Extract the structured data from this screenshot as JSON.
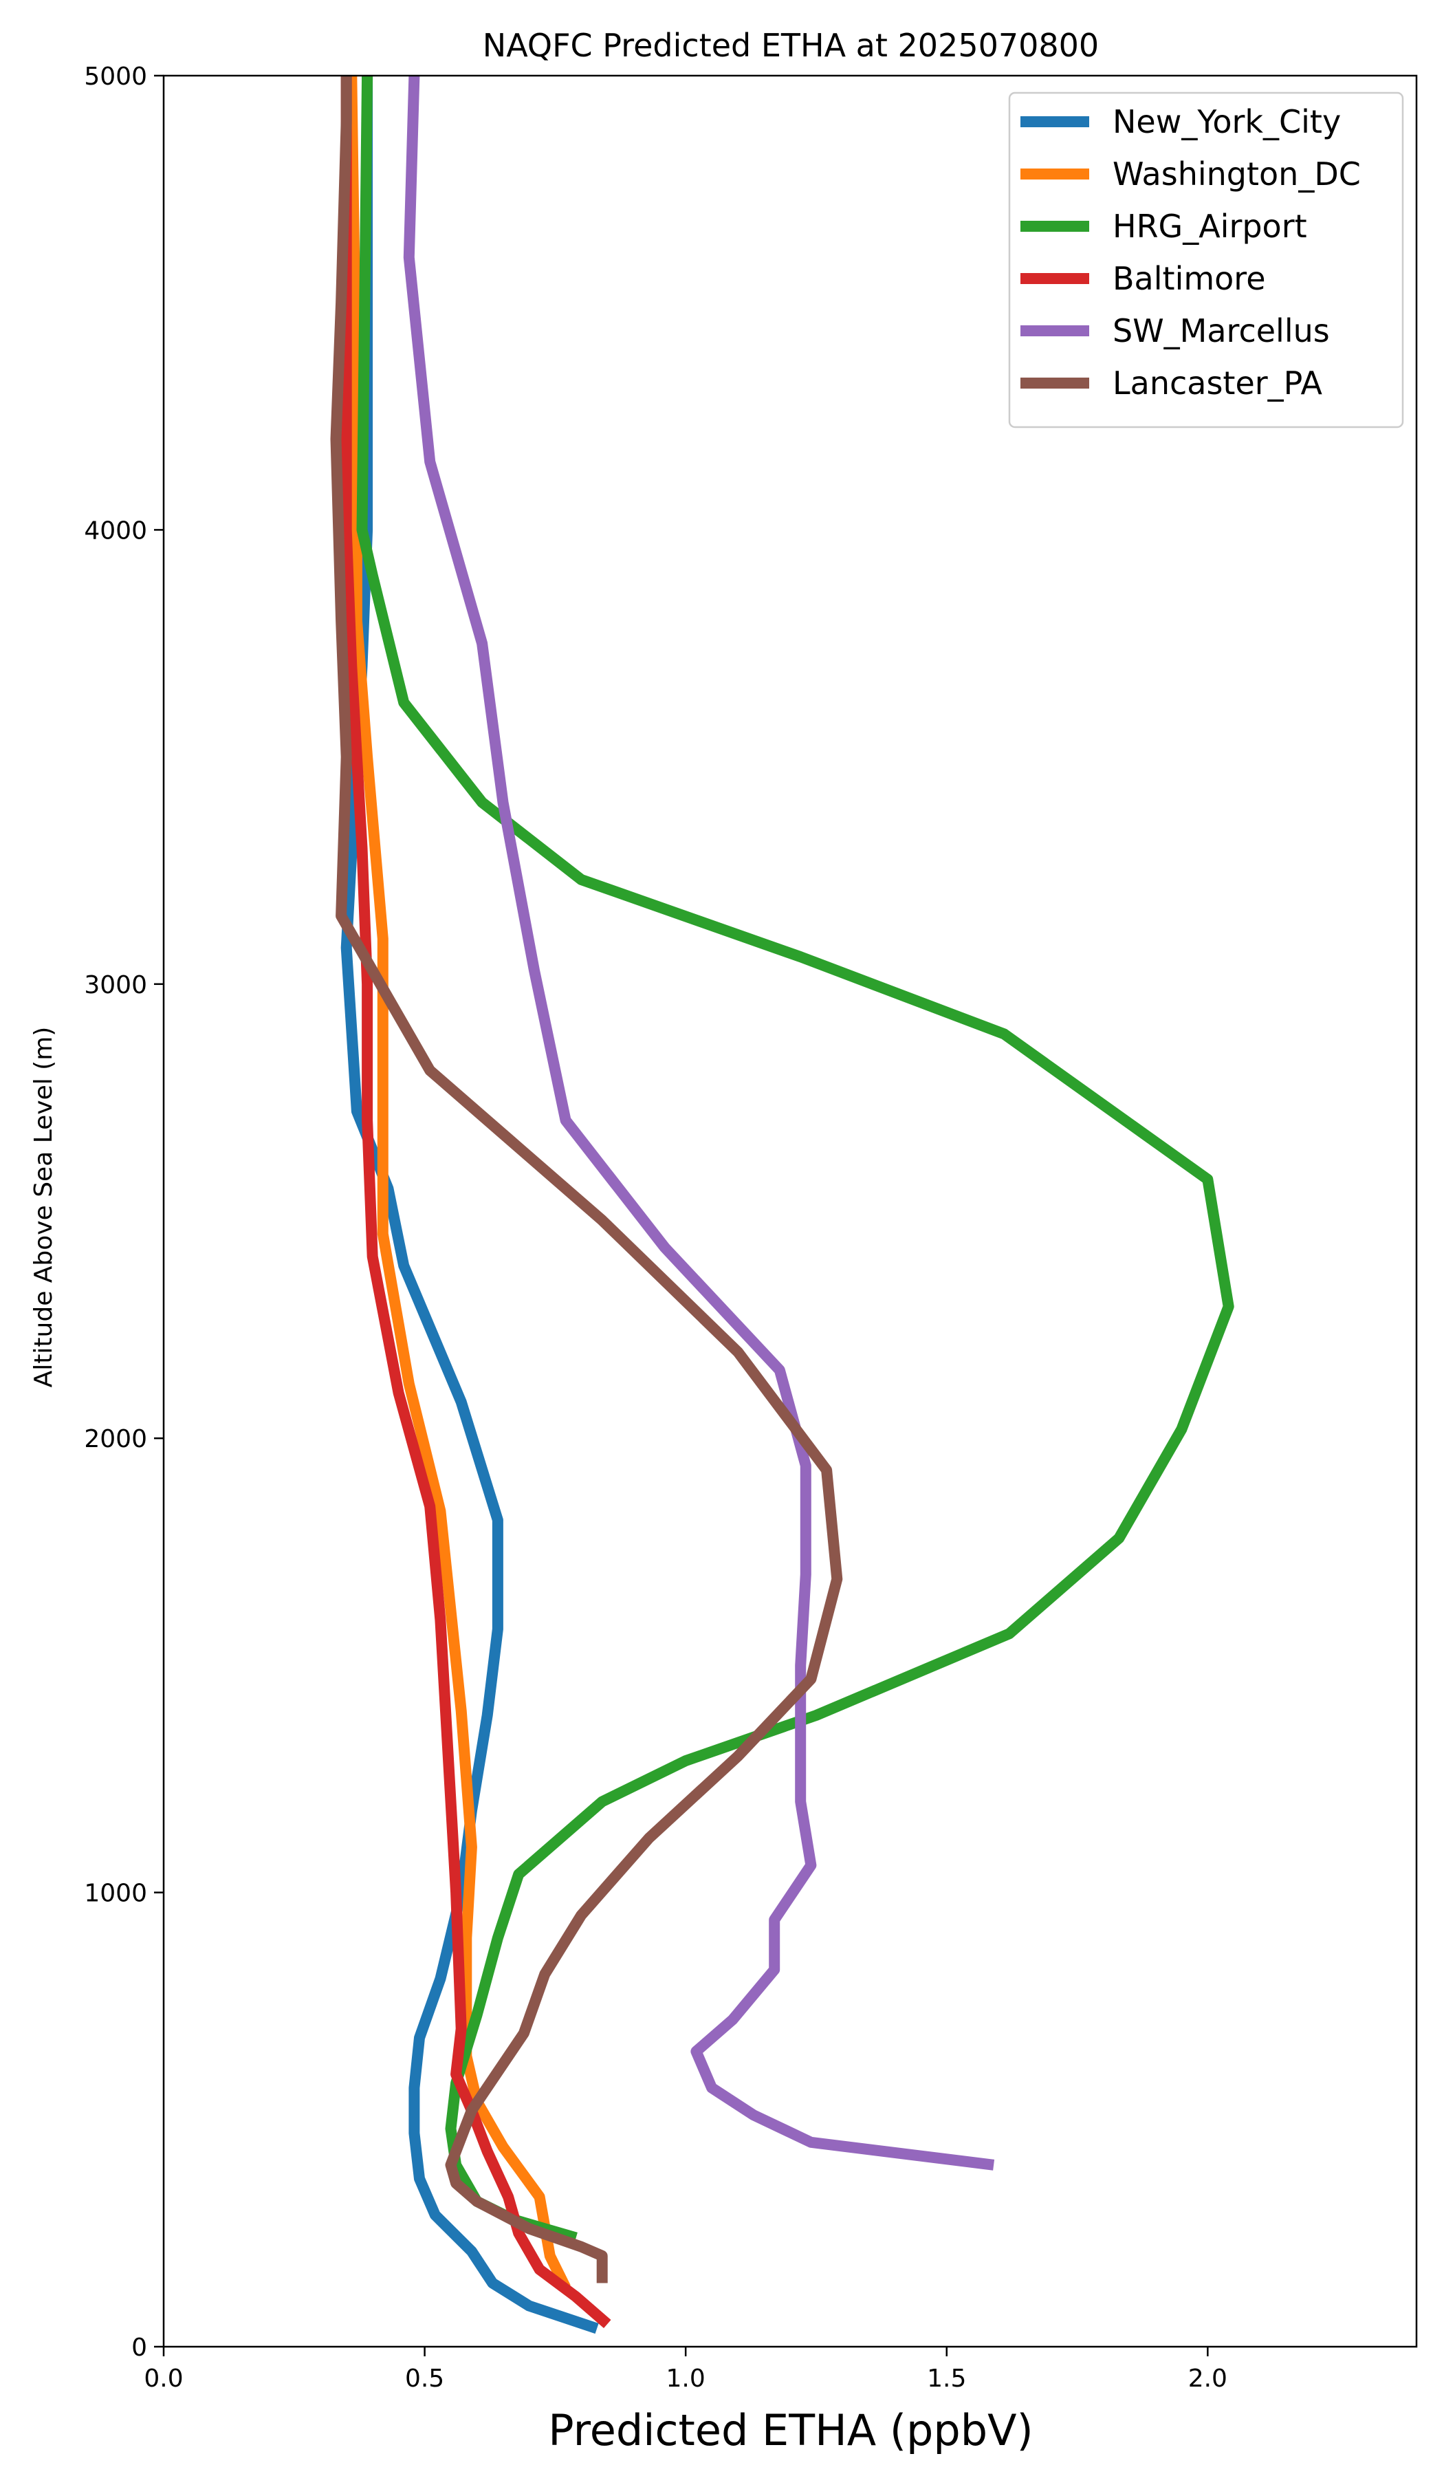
{
  "chart_data": {
    "type": "line",
    "title": "NAQFC Predicted ETHA at 2025070800",
    "xlabel": "Predicted ETHA (ppbV)",
    "ylabel": "Altitude Above Sea Level (m)",
    "xlim": [
      0,
      2.4
    ],
    "ylim": [
      0,
      5000
    ],
    "xticks": [
      "0.0",
      "0.5",
      "1.0",
      "1.5",
      "2.0"
    ],
    "yticks": [
      "0",
      "1000",
      "2000",
      "3000",
      "4000",
      "5000"
    ],
    "grid": false,
    "legend_position": "top-right",
    "series": [
      {
        "name": "New_York_City",
        "color": "#1f77b4",
        "points": [
          [
            0.83,
            40
          ],
          [
            0.7,
            90
          ],
          [
            0.63,
            140
          ],
          [
            0.59,
            210
          ],
          [
            0.52,
            290
          ],
          [
            0.49,
            370
          ],
          [
            0.48,
            470
          ],
          [
            0.48,
            570
          ],
          [
            0.49,
            680
          ],
          [
            0.53,
            810
          ],
          [
            0.57,
            1000
          ],
          [
            0.59,
            1180
          ],
          [
            0.62,
            1390
          ],
          [
            0.64,
            1580
          ],
          [
            0.64,
            1820
          ],
          [
            0.57,
            2080
          ],
          [
            0.46,
            2380
          ],
          [
            0.43,
            2550
          ],
          [
            0.37,
            2720
          ],
          [
            0.35,
            3080
          ],
          [
            0.38,
            3700
          ],
          [
            0.39,
            4000
          ],
          [
            0.39,
            5000
          ]
        ]
      },
      {
        "name": "Washington_DC",
        "color": "#ff7f0e",
        "points": [
          [
            0.77,
            130
          ],
          [
            0.74,
            200
          ],
          [
            0.72,
            330
          ],
          [
            0.65,
            440
          ],
          [
            0.6,
            540
          ],
          [
            0.58,
            640
          ],
          [
            0.58,
            900
          ],
          [
            0.59,
            1100
          ],
          [
            0.57,
            1400
          ],
          [
            0.53,
            1840
          ],
          [
            0.47,
            2120
          ],
          [
            0.42,
            2450
          ],
          [
            0.42,
            2720
          ],
          [
            0.42,
            3100
          ],
          [
            0.39,
            3500
          ],
          [
            0.37,
            3800
          ],
          [
            0.37,
            4200
          ],
          [
            0.36,
            5000
          ]
        ]
      },
      {
        "name": "HRG_Airport",
        "color": "#2ca02c",
        "points": [
          [
            0.79,
            240
          ],
          [
            0.67,
            280
          ],
          [
            0.6,
            320
          ],
          [
            0.56,
            400
          ],
          [
            0.55,
            480
          ],
          [
            0.56,
            580
          ],
          [
            0.6,
            730
          ],
          [
            0.64,
            900
          ],
          [
            0.68,
            1040
          ],
          [
            0.84,
            1200
          ],
          [
            1.0,
            1290
          ],
          [
            1.25,
            1390
          ],
          [
            1.62,
            1570
          ],
          [
            1.83,
            1780
          ],
          [
            1.95,
            2020
          ],
          [
            2.04,
            2290
          ],
          [
            2.0,
            2570
          ],
          [
            1.61,
            2890
          ],
          [
            1.22,
            3060
          ],
          [
            0.8,
            3230
          ],
          [
            0.61,
            3400
          ],
          [
            0.46,
            3620
          ],
          [
            0.4,
            3900
          ],
          [
            0.38,
            4000
          ],
          [
            0.39,
            5000
          ]
        ]
      },
      {
        "name": "Baltimore",
        "color": "#d62728",
        "points": [
          [
            0.85,
            50
          ],
          [
            0.79,
            110
          ],
          [
            0.72,
            170
          ],
          [
            0.68,
            250
          ],
          [
            0.66,
            330
          ],
          [
            0.62,
            430
          ],
          [
            0.59,
            520
          ],
          [
            0.56,
            600
          ],
          [
            0.57,
            700
          ],
          [
            0.56,
            1000
          ],
          [
            0.54,
            1400
          ],
          [
            0.53,
            1600
          ],
          [
            0.51,
            1850
          ],
          [
            0.45,
            2100
          ],
          [
            0.4,
            2400
          ],
          [
            0.39,
            2700
          ],
          [
            0.39,
            3000
          ],
          [
            0.38,
            3300
          ],
          [
            0.36,
            3700
          ],
          [
            0.35,
            4000
          ],
          [
            0.35,
            4500
          ],
          [
            0.35,
            5000
          ]
        ]
      },
      {
        "name": "SW_Marcellus",
        "color": "#9467bd",
        "points": [
          [
            1.59,
            400
          ],
          [
            1.24,
            450
          ],
          [
            1.13,
            510
          ],
          [
            1.05,
            570
          ],
          [
            1.02,
            650
          ],
          [
            1.09,
            720
          ],
          [
            1.17,
            830
          ],
          [
            1.17,
            940
          ],
          [
            1.24,
            1060
          ],
          [
            1.22,
            1200
          ],
          [
            1.22,
            1500
          ],
          [
            1.23,
            1700
          ],
          [
            1.23,
            1940
          ],
          [
            1.18,
            2150
          ],
          [
            0.96,
            2420
          ],
          [
            0.77,
            2700
          ],
          [
            0.71,
            3030
          ],
          [
            0.65,
            3400
          ],
          [
            0.61,
            3750
          ],
          [
            0.51,
            4150
          ],
          [
            0.47,
            4600
          ],
          [
            0.48,
            5000
          ]
        ]
      },
      {
        "name": "Lancaster_PA",
        "color": "#8c564b",
        "points": [
          [
            0.84,
            140
          ],
          [
            0.84,
            200
          ],
          [
            0.8,
            220
          ],
          [
            0.7,
            260
          ],
          [
            0.6,
            320
          ],
          [
            0.56,
            360
          ],
          [
            0.55,
            400
          ],
          [
            0.59,
            520
          ],
          [
            0.69,
            690
          ],
          [
            0.73,
            820
          ],
          [
            0.8,
            950
          ],
          [
            0.93,
            1120
          ],
          [
            1.1,
            1300
          ],
          [
            1.24,
            1470
          ],
          [
            1.29,
            1690
          ],
          [
            1.27,
            1930
          ],
          [
            1.1,
            2190
          ],
          [
            0.84,
            2480
          ],
          [
            0.51,
            2810
          ],
          [
            0.34,
            3150
          ],
          [
            0.35,
            3500
          ],
          [
            0.34,
            3800
          ],
          [
            0.33,
            4200
          ],
          [
            0.34,
            4500
          ],
          [
            0.35,
            4900
          ],
          [
            0.35,
            5000
          ]
        ]
      }
    ]
  }
}
